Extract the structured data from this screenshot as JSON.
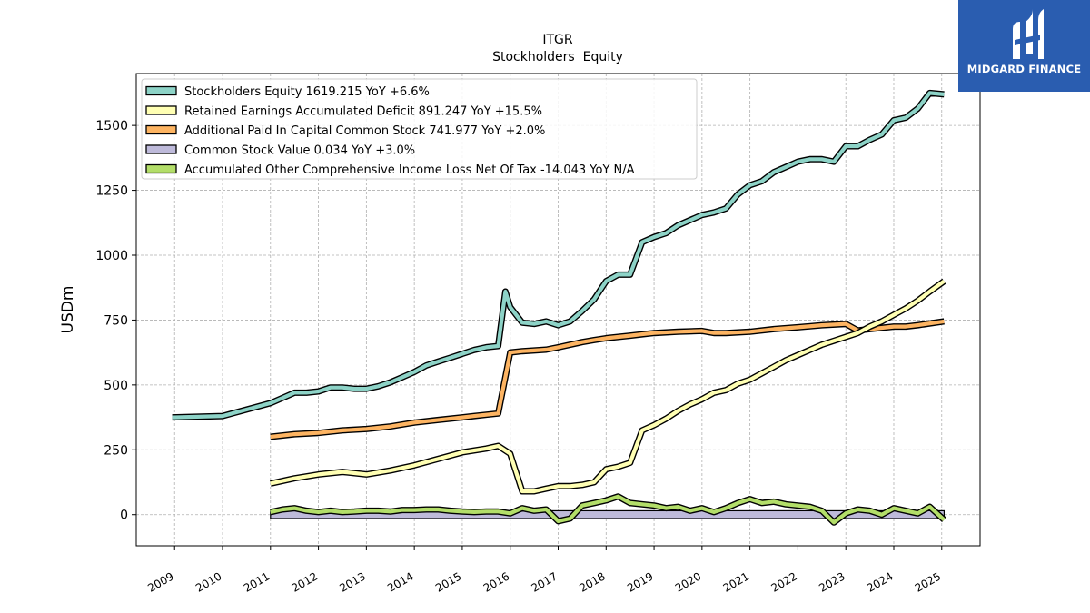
{
  "brand": {
    "name": "MIDGARD FINANCE",
    "color": "#2a5db0"
  },
  "chart_data": {
    "type": "line",
    "title": "ITGR",
    "subtitle": "Stockholders  Equity",
    "xlabel": "",
    "ylabel": "USDm",
    "xlim": [
      2008.2,
      2025.8
    ],
    "ylim": [
      -120,
      1700
    ],
    "yticks": [
      0,
      250,
      500,
      750,
      1000,
      1250,
      1500
    ],
    "xtick_labels": [
      "2009",
      "2010",
      "2011",
      "2012",
      "2013",
      "2014",
      "2015",
      "2016",
      "2017",
      "2018",
      "2019",
      "2020",
      "2021",
      "2022",
      "2023",
      "2024",
      "2025"
    ],
    "grid": true,
    "legend_position": "top-left",
    "series": [
      {
        "name": "Stockholders Equity  1619.215 YoY +6.6%",
        "color": "#8dd3c7",
        "x": [
          2008.95,
          2010.0,
          2010.5,
          2011.0,
          2011.5,
          2011.75,
          2012.0,
          2012.25,
          2012.5,
          2012.75,
          2013.0,
          2013.25,
          2013.5,
          2013.75,
          2014.0,
          2014.25,
          2014.5,
          2014.75,
          2015.0,
          2015.25,
          2015.5,
          2015.75,
          2015.9,
          2016.0,
          2016.25,
          2016.5,
          2016.75,
          2017.0,
          2017.25,
          2017.5,
          2017.75,
          2018.0,
          2018.25,
          2018.5,
          2018.75,
          2019.0,
          2019.25,
          2019.5,
          2019.75,
          2020.0,
          2020.25,
          2020.5,
          2020.75,
          2021.0,
          2021.25,
          2021.5,
          2021.75,
          2022.0,
          2022.25,
          2022.5,
          2022.75,
          2023.0,
          2023.25,
          2023.5,
          2023.75,
          2024.0,
          2024.25,
          2024.5,
          2024.75,
          2025.05
        ],
        "y": [
          375,
          380,
          405,
          430,
          470,
          470,
          475,
          490,
          490,
          485,
          485,
          495,
          510,
          530,
          550,
          575,
          590,
          605,
          620,
          635,
          645,
          650,
          860,
          800,
          740,
          735,
          745,
          730,
          745,
          785,
          830,
          900,
          925,
          925,
          1050,
          1070,
          1085,
          1115,
          1135,
          1155,
          1165,
          1180,
          1235,
          1270,
          1285,
          1320,
          1340,
          1360,
          1370,
          1370,
          1360,
          1420,
          1420,
          1445,
          1465,
          1520,
          1530,
          1565,
          1625,
          1620
        ]
      },
      {
        "name": "Retained Earnings Accumulated Deficit  891.247 YoY +15.5%",
        "color": "#ffffb3",
        "x": [
          2011.0,
          2011.5,
          2012.0,
          2012.5,
          2013.0,
          2013.5,
          2014.0,
          2014.5,
          2015.0,
          2015.5,
          2015.75,
          2016.0,
          2016.25,
          2016.5,
          2016.75,
          2017.0,
          2017.25,
          2017.5,
          2017.75,
          2018.0,
          2018.25,
          2018.5,
          2018.75,
          2019.0,
          2019.25,
          2019.5,
          2019.75,
          2020.0,
          2020.25,
          2020.5,
          2020.75,
          2021.0,
          2021.25,
          2021.5,
          2021.75,
          2022.0,
          2022.25,
          2022.5,
          2022.75,
          2023.0,
          2023.25,
          2023.5,
          2023.75,
          2024.0,
          2024.25,
          2024.5,
          2024.75,
          2025.05
        ],
        "y": [
          120,
          140,
          155,
          165,
          155,
          170,
          190,
          215,
          240,
          255,
          265,
          235,
          90,
          90,
          100,
          110,
          110,
          115,
          125,
          175,
          185,
          200,
          325,
          345,
          370,
          400,
          425,
          445,
          470,
          480,
          505,
          520,
          545,
          570,
          595,
          615,
          635,
          655,
          670,
          685,
          700,
          725,
          745,
          770,
          795,
          825,
          860,
          900
        ]
      },
      {
        "name": "Additional Paid In Capital Common Stock  741.977 YoY +2.0%",
        "color": "#fdb462",
        "x": [
          2011.0,
          2011.5,
          2012.0,
          2012.5,
          2013.0,
          2013.5,
          2014.0,
          2014.5,
          2015.0,
          2015.25,
          2015.5,
          2015.75,
          2016.0,
          2016.25,
          2016.5,
          2016.75,
          2017.0,
          2017.25,
          2017.5,
          2017.75,
          2018.0,
          2018.25,
          2018.5,
          2018.75,
          2019.0,
          2019.5,
          2020.0,
          2020.25,
          2020.5,
          2021.0,
          2021.5,
          2022.0,
          2022.5,
          2023.0,
          2023.25,
          2023.5,
          2024.0,
          2024.25,
          2024.5,
          2025.05
        ],
        "y": [
          300,
          310,
          315,
          325,
          330,
          340,
          355,
          365,
          375,
          380,
          385,
          390,
          625,
          630,
          633,
          636,
          645,
          655,
          665,
          673,
          680,
          685,
          690,
          695,
          700,
          705,
          708,
          700,
          700,
          705,
          715,
          722,
          730,
          735,
          710,
          715,
          725,
          725,
          730,
          745
        ]
      },
      {
        "name": "Common Stock Value  0.034 YoY +3.0%",
        "color": "#bebada",
        "x": [
          2011.0,
          2025.05
        ],
        "y": [
          0.03,
          0.034
        ]
      },
      {
        "name": "Accumulated Other Comprehensive Income Loss Net Of Tax  -14.043 YoY N/A",
        "color": "#b3de69",
        "x": [
          2011.0,
          2011.25,
          2011.5,
          2011.75,
          2012.0,
          2012.25,
          2012.5,
          2012.75,
          2013.0,
          2013.25,
          2013.5,
          2013.75,
          2014.0,
          2014.25,
          2014.5,
          2014.75,
          2015.0,
          2015.25,
          2015.5,
          2015.75,
          2016.0,
          2016.25,
          2016.5,
          2016.75,
          2017.0,
          2017.25,
          2017.5,
          2017.75,
          2018.0,
          2018.25,
          2018.5,
          2018.75,
          2019.0,
          2019.25,
          2019.5,
          2019.75,
          2020.0,
          2020.25,
          2020.5,
          2020.75,
          2021.0,
          2021.25,
          2021.5,
          2021.75,
          2022.0,
          2022.25,
          2022.5,
          2022.75,
          2023.0,
          2023.25,
          2023.5,
          2023.75,
          2024.0,
          2024.25,
          2024.5,
          2024.75,
          2025.05
        ],
        "y": [
          10,
          20,
          25,
          15,
          10,
          15,
          10,
          12,
          15,
          15,
          12,
          18,
          18,
          20,
          20,
          15,
          12,
          10,
          12,
          12,
          5,
          25,
          15,
          20,
          -25,
          -15,
          35,
          45,
          55,
          70,
          45,
          40,
          35,
          25,
          30,
          15,
          25,
          10,
          25,
          45,
          60,
          45,
          50,
          40,
          35,
          30,
          15,
          -30,
          5,
          20,
          15,
          0,
          25,
          15,
          5,
          30,
          -20
        ]
      }
    ]
  }
}
